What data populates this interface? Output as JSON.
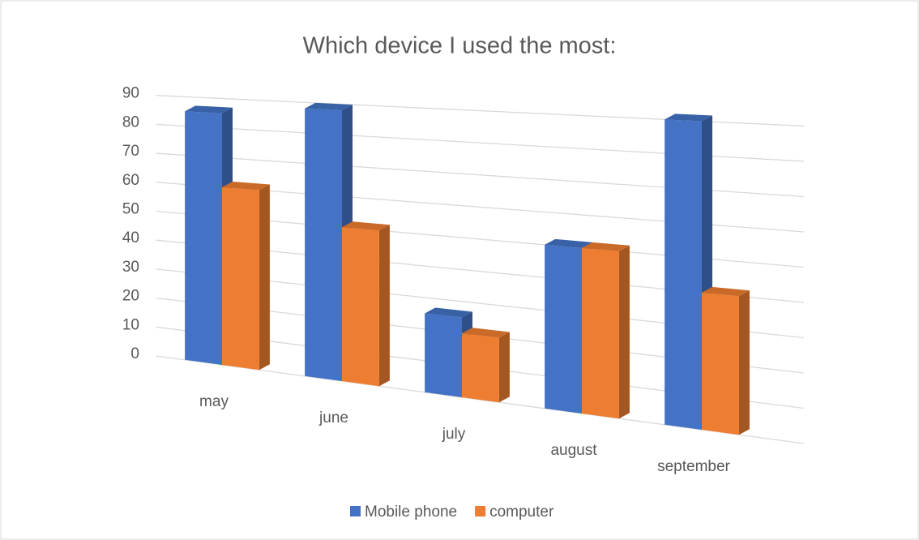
{
  "chart_data": {
    "type": "bar3d",
    "title": "Which device I used the most:",
    "categories": [
      "may",
      "june",
      "july",
      "august",
      "september"
    ],
    "series": [
      {
        "name": "Mobile phone",
        "color": "#4472c4",
        "values": [
          85,
          88,
          25,
          50,
          90
        ]
      },
      {
        "name": "computer",
        "color": "#ed7d31",
        "values": [
          60,
          50,
          20,
          50,
          40
        ]
      }
    ],
    "ylim": [
      0,
      90
    ],
    "yticks": [
      0,
      10,
      20,
      30,
      40,
      50,
      60,
      70,
      80,
      90
    ],
    "grid": true
  }
}
